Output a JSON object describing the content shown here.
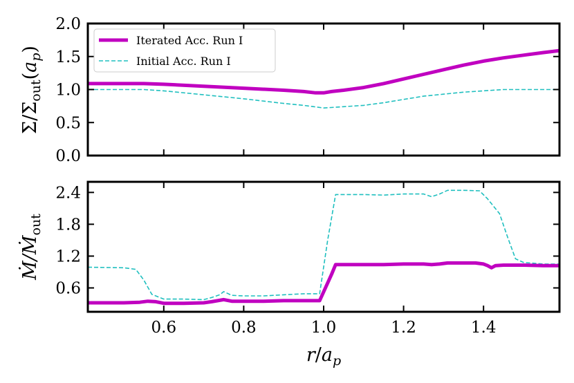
{
  "chart_data": [
    {
      "type": "line",
      "panel": "top",
      "ylabel_parts": {
        "main": "Σ/Σ",
        "sub": "out",
        "arg_open": "(",
        "arg_var": "a",
        "arg_sub": "p",
        "arg_close": ")"
      },
      "xlim": [
        0.41,
        1.59
      ],
      "ylim": [
        0.0,
        2.0
      ],
      "yticks": [
        "0.0",
        "0.5",
        "1.0",
        "1.5",
        "2.0"
      ],
      "ytick_values": [
        0.0,
        0.5,
        1.0,
        1.5,
        2.0
      ],
      "legend": {
        "placement": "top-left",
        "entries": [
          "Iterated Acc. Run I",
          "Initial Acc. Run I"
        ]
      },
      "series": [
        {
          "name": "Iterated Acc. Run I",
          "color": "#c000c0",
          "style": "solid",
          "x": [
            0.41,
            0.5,
            0.55,
            0.6,
            0.7,
            0.8,
            0.9,
            0.95,
            0.98,
            1.0,
            1.02,
            1.05,
            1.1,
            1.15,
            1.2,
            1.25,
            1.3,
            1.35,
            1.4,
            1.45,
            1.5,
            1.55,
            1.59
          ],
          "y": [
            1.09,
            1.09,
            1.09,
            1.08,
            1.05,
            1.02,
            0.99,
            0.97,
            0.95,
            0.95,
            0.97,
            0.99,
            1.03,
            1.09,
            1.16,
            1.23,
            1.3,
            1.37,
            1.43,
            1.48,
            1.52,
            1.56,
            1.59
          ]
        },
        {
          "name": "Initial Acc. Run I",
          "color": "#1fbfbf",
          "style": "dashed",
          "x": [
            0.41,
            0.5,
            0.55,
            0.6,
            0.7,
            0.8,
            0.9,
            0.95,
            1.0,
            1.05,
            1.1,
            1.15,
            1.2,
            1.25,
            1.3,
            1.35,
            1.4,
            1.45,
            1.5,
            1.55,
            1.59
          ],
          "y": [
            1.0,
            1.0,
            1.0,
            0.98,
            0.92,
            0.86,
            0.79,
            0.76,
            0.72,
            0.74,
            0.76,
            0.8,
            0.85,
            0.9,
            0.93,
            0.96,
            0.98,
            1.0,
            1.0,
            1.0,
            1.0
          ]
        }
      ]
    },
    {
      "type": "line",
      "panel": "bottom",
      "ylabel_parts": {
        "main": "Ṁ/Ṁ",
        "sub": "out"
      },
      "xlabel_parts": {
        "r": "r",
        "slash": "/",
        "a": "a",
        "sub": "p"
      },
      "xlim": [
        0.41,
        1.59
      ],
      "ylim": [
        0.15,
        2.6
      ],
      "xticks": [
        "0.6",
        "0.8",
        "1.0",
        "1.2",
        "1.4"
      ],
      "xtick_values": [
        0.6,
        0.8,
        1.0,
        1.2,
        1.4
      ],
      "yticks": [
        "0.6",
        "1.2",
        "1.8",
        "2.4"
      ],
      "ytick_values": [
        0.6,
        1.2,
        1.8,
        2.4
      ],
      "series": [
        {
          "name": "Iterated Acc. Run I",
          "color": "#c000c0",
          "style": "solid",
          "x": [
            0.41,
            0.5,
            0.54,
            0.56,
            0.58,
            0.6,
            0.65,
            0.7,
            0.72,
            0.75,
            0.77,
            0.8,
            0.85,
            0.9,
            0.95,
            0.99,
            1.02,
            1.03,
            1.1,
            1.15,
            1.2,
            1.25,
            1.27,
            1.29,
            1.31,
            1.35,
            1.38,
            1.4,
            1.41,
            1.42,
            1.43,
            1.45,
            1.5,
            1.55,
            1.59
          ],
          "y": [
            0.32,
            0.32,
            0.33,
            0.35,
            0.34,
            0.31,
            0.31,
            0.32,
            0.34,
            0.38,
            0.35,
            0.35,
            0.35,
            0.36,
            0.36,
            0.36,
            0.86,
            1.04,
            1.04,
            1.04,
            1.05,
            1.05,
            1.04,
            1.05,
            1.07,
            1.07,
            1.07,
            1.05,
            1.02,
            0.98,
            1.02,
            1.03,
            1.03,
            1.02,
            1.02
          ]
        },
        {
          "name": "Initial Acc. Run I",
          "color": "#1fbfbf",
          "style": "dashed",
          "x": [
            0.41,
            0.5,
            0.53,
            0.55,
            0.57,
            0.6,
            0.65,
            0.7,
            0.72,
            0.74,
            0.75,
            0.77,
            0.8,
            0.85,
            0.9,
            0.95,
            0.99,
            1.01,
            1.03,
            1.1,
            1.15,
            1.2,
            1.25,
            1.27,
            1.29,
            1.31,
            1.35,
            1.39,
            1.41,
            1.44,
            1.46,
            1.48,
            1.5,
            1.55,
            1.59
          ],
          "y": [
            0.99,
            0.98,
            0.95,
            0.75,
            0.48,
            0.39,
            0.39,
            0.38,
            0.42,
            0.47,
            0.53,
            0.46,
            0.45,
            0.45,
            0.47,
            0.49,
            0.49,
            1.5,
            2.36,
            2.36,
            2.35,
            2.37,
            2.37,
            2.32,
            2.37,
            2.44,
            2.44,
            2.43,
            2.28,
            2.0,
            1.56,
            1.15,
            1.08,
            1.05,
            1.05
          ]
        }
      ]
    }
  ]
}
